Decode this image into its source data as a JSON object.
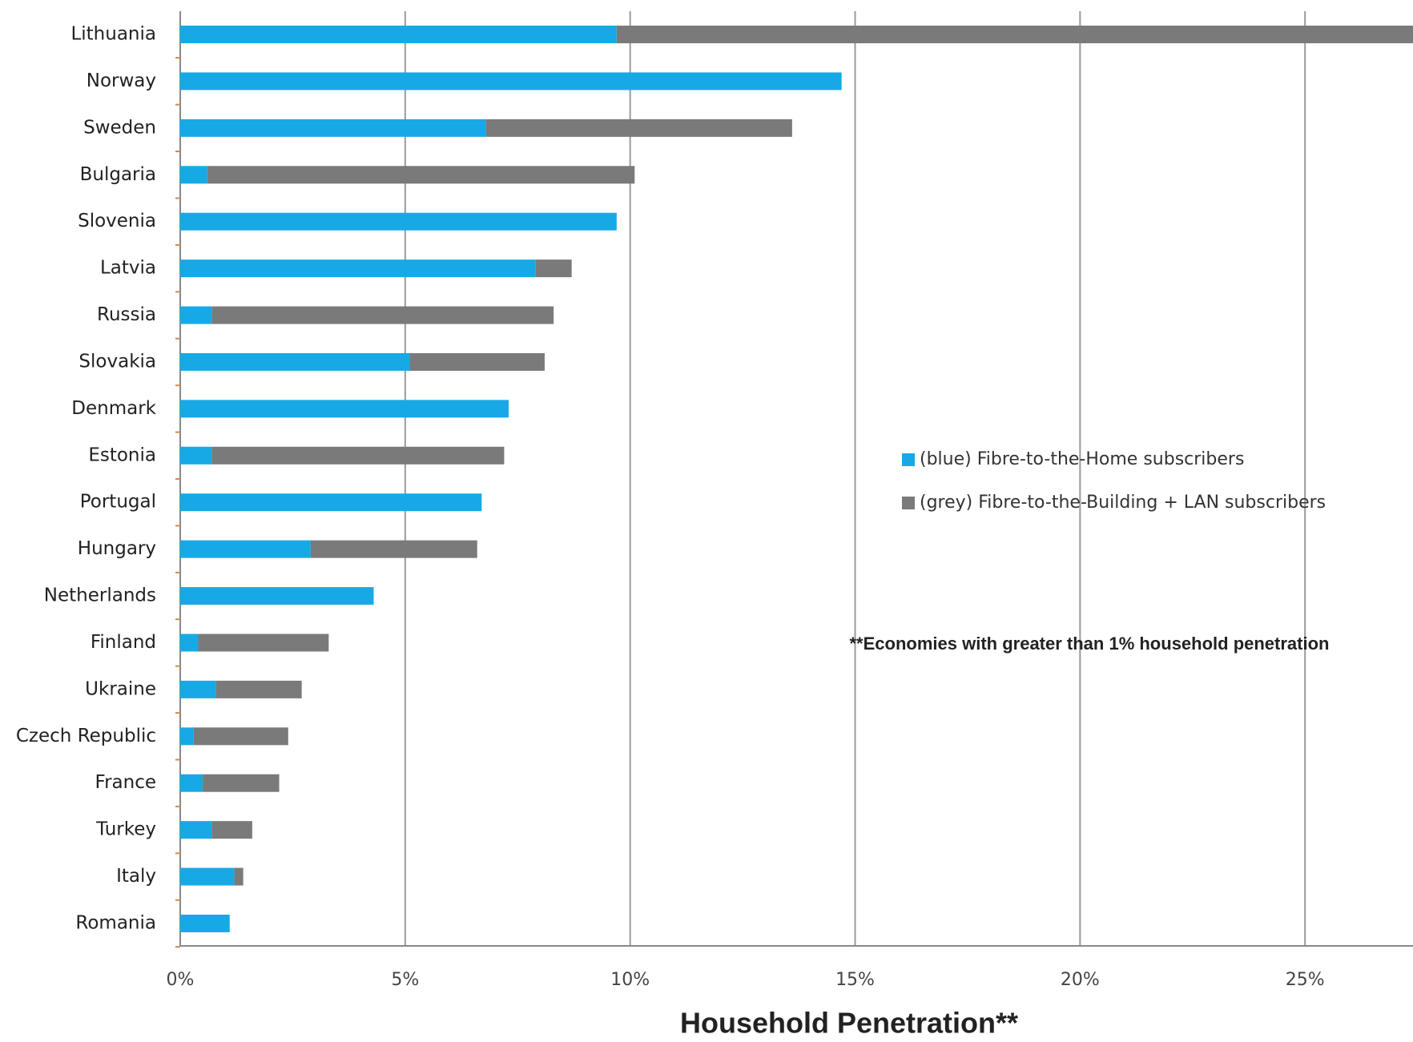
{
  "chart_data": {
    "type": "stacked-barh",
    "categories": [
      "Lithuania",
      "Norway",
      "Sweden",
      "Bulgaria",
      "Slovenia",
      "Latvia",
      "Russia",
      "Slovakia",
      "Denmark",
      "Estonia",
      "Portugal",
      "Hungary",
      "Netherlands",
      "Finland",
      "Ukraine",
      "Czech Republic",
      "France",
      "Turkey",
      "Italy",
      "Romania"
    ],
    "series": [
      {
        "name": "(blue) Fibre-to-the-Home subscribers",
        "color": "#17a9e6",
        "values": [
          9.7,
          14.7,
          6.8,
          0.6,
          9.7,
          7.9,
          0.7,
          5.1,
          7.3,
          0.7,
          6.7,
          2.9,
          4.3,
          0.4,
          0.8,
          0.3,
          0.5,
          0.7,
          1.2,
          1.1
        ]
      },
      {
        "name": "(grey) Fibre-to-the-Building + LAN subscribers",
        "color": "#7a7a7a",
        "values": [
          18.5,
          0,
          6.8,
          9.5,
          0,
          0.8,
          7.6,
          3.0,
          0,
          6.5,
          0,
          3.7,
          0,
          2.9,
          1.9,
          2.1,
          1.7,
          0.9,
          0.2,
          0
        ]
      }
    ],
    "xlim": [
      0,
      27.4
    ],
    "xticks": [
      {
        "value": 0,
        "label": "0%"
      },
      {
        "value": 5,
        "label": "5%"
      },
      {
        "value": 10,
        "label": "10%"
      },
      {
        "value": 15,
        "label": "15%"
      },
      {
        "value": 20,
        "label": "20%"
      },
      {
        "value": 25,
        "label": "25%"
      }
    ],
    "xlabel": "Household Penetration**",
    "annotation": "**Economies with greater than 1% household penetration",
    "grid": true
  }
}
